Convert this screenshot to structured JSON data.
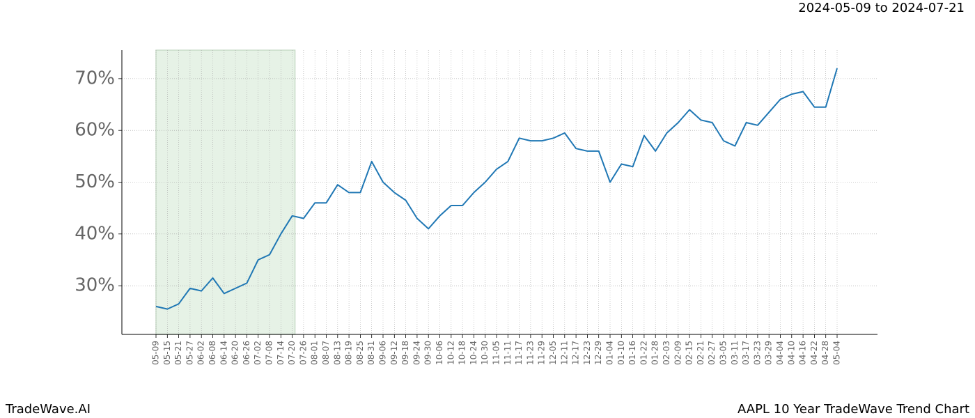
{
  "chart_data": {
    "type": "line",
    "title": "AAPL 10 Year TradeWave Trend Chart",
    "subtitle": "2024-05-09 to 2024-07-21",
    "brand": "TradeWave.AI",
    "categories": [
      "05-09",
      "05-15",
      "05-21",
      "05-27",
      "06-02",
      "06-08",
      "06-14",
      "06-20",
      "06-26",
      "07-02",
      "07-08",
      "07-14",
      "07-20",
      "07-26",
      "08-01",
      "08-07",
      "08-13",
      "08-19",
      "08-25",
      "08-31",
      "09-06",
      "09-12",
      "09-18",
      "09-24",
      "09-30",
      "10-06",
      "10-12",
      "10-18",
      "10-24",
      "10-30",
      "11-05",
      "11-11",
      "11-17",
      "11-23",
      "11-29",
      "12-05",
      "12-11",
      "12-17",
      "12-23",
      "12-29",
      "01-04",
      "01-10",
      "01-16",
      "01-22",
      "01-28",
      "02-03",
      "02-09",
      "02-15",
      "02-21",
      "02-27",
      "03-05",
      "03-11",
      "03-17",
      "03-23",
      "03-29",
      "04-04",
      "04-10",
      "04-16",
      "04-22",
      "04-28",
      "05-04"
    ],
    "series": [
      {
        "name": "AAPL",
        "color": "#1f77b4",
        "values": [
          26,
          25.5,
          26.5,
          29.5,
          29,
          31.5,
          28.5,
          29.5,
          30.5,
          35,
          36,
          40,
          43.5,
          43,
          46,
          46,
          49.5,
          48,
          48,
          54,
          50,
          48,
          46.5,
          43,
          41,
          43.5,
          45.5,
          45.5,
          48,
          50,
          52.5,
          54,
          58.5,
          58,
          58,
          58.5,
          59.5,
          56.5,
          56,
          56,
          50,
          53.5,
          53,
          59,
          56,
          59.5,
          61.5,
          64,
          62,
          61.5,
          58,
          57,
          61.5,
          61,
          63.5,
          66,
          67,
          67.5,
          64.5,
          64.5,
          72
        ]
      }
    ],
    "highlight": {
      "from": "05-09",
      "to": "07-20",
      "color": "#e6f2e6"
    },
    "ylim": [
      20.6,
      75.5
    ],
    "yticks": [
      {
        "value": 30,
        "label": "30%"
      },
      {
        "value": 40,
        "label": "40%"
      },
      {
        "value": 50,
        "label": "50%"
      },
      {
        "value": 60,
        "label": "60%"
      },
      {
        "value": 70,
        "label": "70%"
      }
    ],
    "grid": true
  }
}
